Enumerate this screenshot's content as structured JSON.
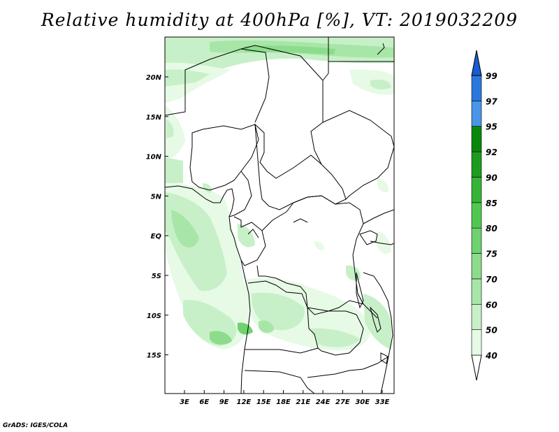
{
  "title": "Relative humidity at 400hPa [%], VT: 2019032209",
  "credit": "GrADS: IGES/COLA",
  "map": {
    "lat_labels": [
      "20N",
      "15N",
      "10N",
      "5N",
      "EQ",
      "5S",
      "10S",
      "15S"
    ],
    "lon_labels": [
      "3E",
      "6E",
      "9E",
      "12E",
      "15E",
      "18E",
      "21E",
      "24E",
      "27E",
      "30E",
      "33E"
    ]
  },
  "colorbar": {
    "levels": [
      "40",
      "50",
      "60",
      "70",
      "75",
      "80",
      "85",
      "90",
      "92",
      "95",
      "97",
      "99"
    ],
    "colors": [
      "#ffffff",
      "#e6fae6",
      "#c8f0c8",
      "#a8e6a8",
      "#8cdc8c",
      "#6ed26e",
      "#50c850",
      "#37b437",
      "#1e9b1e",
      "#0a870a",
      "#4896e6",
      "#2a78dc",
      "#1a5ccd"
    ]
  }
}
